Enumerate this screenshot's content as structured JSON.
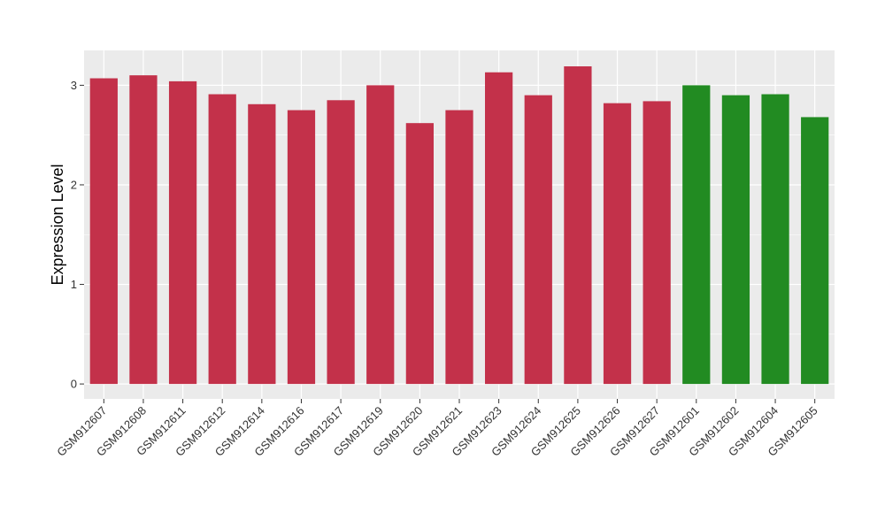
{
  "chart_data": {
    "type": "bar",
    "categories": [
      "GSM912607",
      "GSM912608",
      "GSM912611",
      "GSM912612",
      "GSM912614",
      "GSM912616",
      "GSM912617",
      "GSM912619",
      "GSM912620",
      "GSM912621",
      "GSM912623",
      "GSM912624",
      "GSM912625",
      "GSM912626",
      "GSM912627",
      "GSM912601",
      "GSM912602",
      "GSM912604",
      "GSM912605"
    ],
    "values": [
      3.07,
      3.1,
      3.04,
      2.91,
      2.81,
      2.75,
      2.85,
      3.0,
      2.62,
      2.75,
      3.13,
      2.9,
      3.19,
      2.82,
      2.84,
      3.0,
      2.9,
      2.91,
      2.68
    ],
    "bar_colors": [
      "#c3314a",
      "#c3314a",
      "#c3314a",
      "#c3314a",
      "#c3314a",
      "#c3314a",
      "#c3314a",
      "#c3314a",
      "#c3314a",
      "#c3314a",
      "#c3314a",
      "#c3314a",
      "#c3314a",
      "#c3314a",
      "#c3314a",
      "#228b22",
      "#228b22",
      "#228b22",
      "#228b22"
    ],
    "title": "",
    "xlabel": "",
    "ylabel": "Expression Level",
    "ylim": [
      -0.15,
      3.35
    ],
    "yticks": [
      0,
      1,
      2,
      3
    ],
    "grid": true,
    "legend": "none",
    "panel_background": "#ebebeb",
    "grid_color": "#ffffff"
  }
}
